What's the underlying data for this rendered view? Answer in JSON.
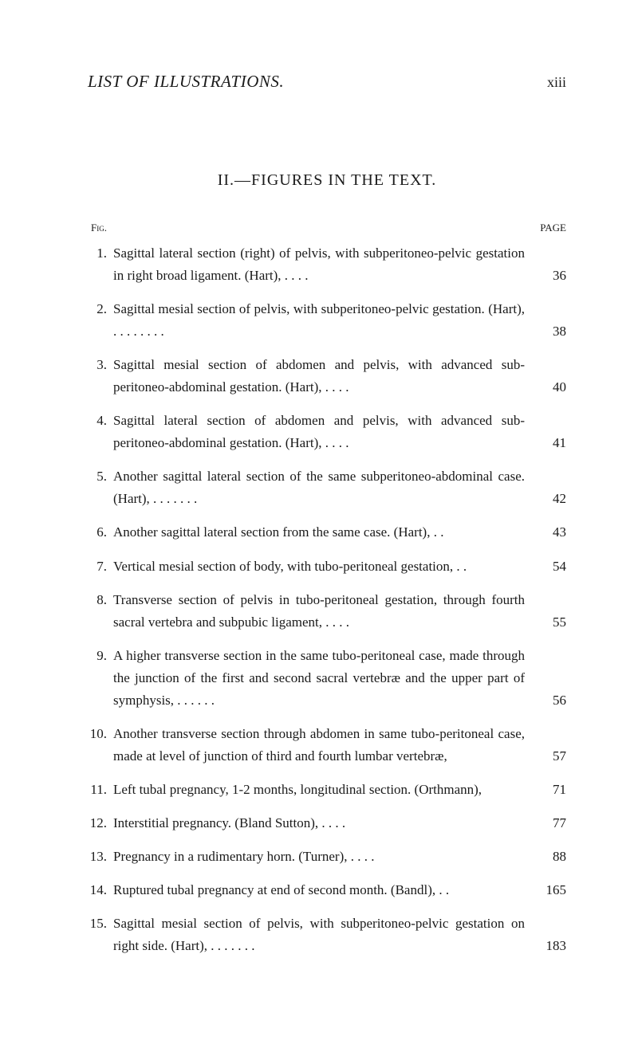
{
  "header": {
    "title": "LIST OF ILLUSTRATIONS.",
    "pageNumeral": "xiii"
  },
  "sectionTitle": "II.—FIGURES IN THE TEXT.",
  "columnLabels": {
    "left": "Fig.",
    "right": "PAGE"
  },
  "entries": [
    {
      "num": "1.",
      "text": "Sagittal lateral section (right) of pelvis, with subperitoneo-pelvic gestation in right broad ligament.   (Hart),    .            .            .            .",
      "page": "36"
    },
    {
      "num": "2.",
      "text": "Sagittal mesial section of pelvis, with subperitoneo-pelvic gestation. (Hart),              .            .            .            .            .            .            .            .",
      "page": "38"
    },
    {
      "num": "3.",
      "text": "Sagittal mesial section of abdomen and pelvis, with advanced sub-peritoneo-abdominal gestation.    (Hart),        .            .            .            .",
      "page": "40"
    },
    {
      "num": "4.",
      "text": "Sagittal lateral section of abdomen and pelvis, with advanced sub-peritoneo-abdominal gestation.    (Hart),        .            .            .            .",
      "page": "41"
    },
    {
      "num": "5.",
      "text": "Another sagittal lateral section of the same subperitoneo-abdominal case.    (Hart),              .            .            .            .            .            .            .",
      "page": "42"
    },
    {
      "num": "6.",
      "text": "Another sagittal lateral section from the same case.    (Hart), .            .",
      "page": "43"
    },
    {
      "num": "7.",
      "text": "Vertical mesial section of body, with tubo-peritoneal gestation,  .            .",
      "page": "54"
    },
    {
      "num": "8.",
      "text": "Transverse section of pelvis in tubo-peritoneal gestation, through fourth sacral vertebra and subpubic ligament,            .            .            .            .",
      "page": "55"
    },
    {
      "num": "9.",
      "text": "A higher transverse section in the same tubo-peritoneal case, made through the junction of the first and second sacral vertebræ and the upper part of symphysis,            .            .            .            .            .            .",
      "page": "56"
    },
    {
      "num": "10.",
      "text": "Another transverse section through abdomen in same tubo-peritoneal case, made at level of junction of third and fourth lumbar vertebræ,",
      "page": "57"
    },
    {
      "num": "11.",
      "text": "Left tubal pregnancy, 1-2 months, longitudinal section.    (Orthmann),",
      "page": "71"
    },
    {
      "num": "12.",
      "text": "Interstitial pregnancy.    (Bland Sutton),            .            .            .            .",
      "page": "77"
    },
    {
      "num": "13.",
      "text": "Pregnancy in a rudimentary horn.    (Turner),  .            .            .            .",
      "page": "88"
    },
    {
      "num": "14.",
      "text": "Ruptured tubal pregnancy at end of second month.    (Bandl), .            .",
      "page": "165"
    },
    {
      "num": "15.",
      "text": "Sagittal mesial section of pelvis, with subperitoneo-pelvic gestation on right side.    (Hart),   .            .            .            .            .            .            .",
      "page": "183"
    }
  ]
}
